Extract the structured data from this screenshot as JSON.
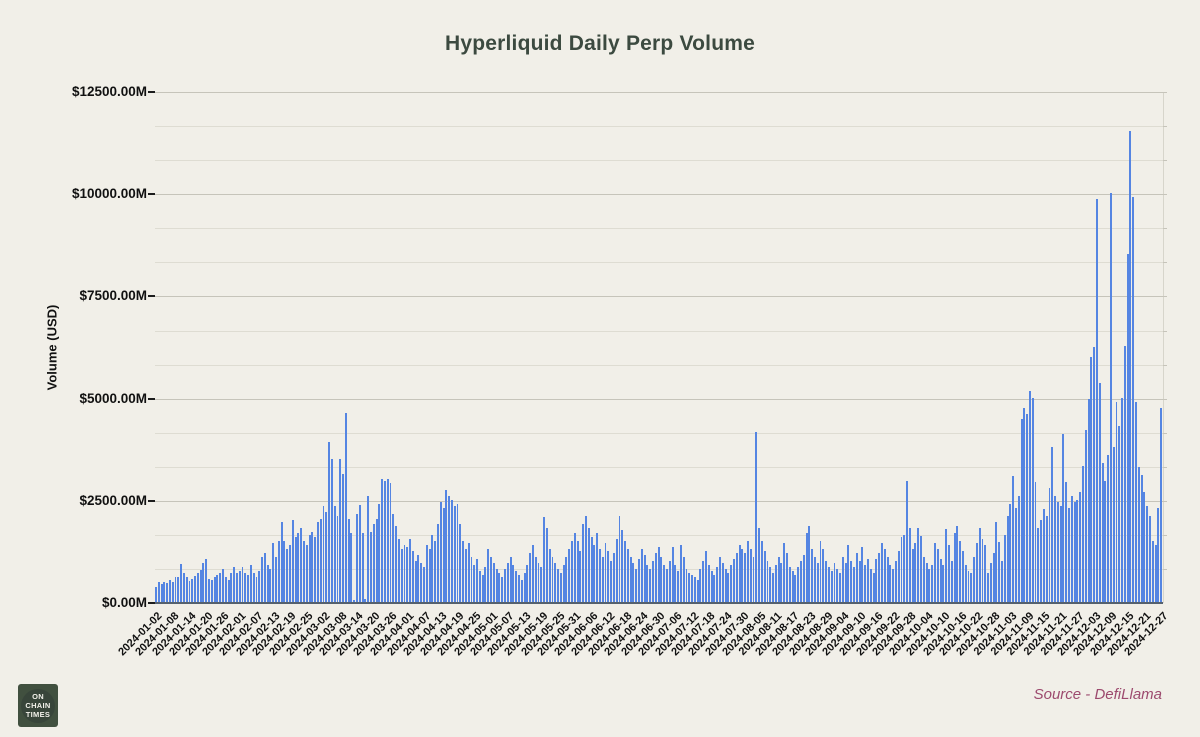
{
  "page": {
    "background": "#f1efe8"
  },
  "header": {
    "title": "Hyperliquid Daily Perp Volume",
    "title_color": "#3c4a40"
  },
  "footer": {
    "source_label": "Source - DefiLlama",
    "source_color": "#9c4a6e",
    "logo_lines": [
      "ON",
      "CHAIN",
      "TIMES"
    ]
  },
  "chart_data": {
    "type": "bar",
    "title": "Hyperliquid Daily Perp Volume",
    "xlabel": "",
    "ylabel": "Volume (USD)",
    "bar_color": "#5585e2",
    "ylim": [
      0,
      12500
    ],
    "grid": "horizontal, 2 minor lines between each labeled major line",
    "legend": "none",
    "y_tick_values": [
      0,
      2500,
      5000,
      7500,
      10000,
      12500
    ],
    "y_tick_labels": [
      "$0.00M",
      "$2500.00M",
      "$5000.00M",
      "$7500.00M",
      "$10000.00M",
      "$12500.00M"
    ],
    "x_tick_every_days": 6,
    "x_tick_labels": [
      "2024-01-02",
      "2024-01-08",
      "2024-01-14",
      "2024-01-20",
      "2024-01-26",
      "2024-02-01",
      "2024-02-07",
      "2024-02-13",
      "2024-02-19",
      "2024-02-25",
      "2024-03-02",
      "2024-03-08",
      "2024-03-14",
      "2024-03-20",
      "2024-03-26",
      "2024-04-01",
      "2024-04-07",
      "2024-04-13",
      "2024-04-19",
      "2024-04-25",
      "2024-05-01",
      "2024-05-07",
      "2024-05-13",
      "2024-05-19",
      "2024-05-25",
      "2024-05-31",
      "2024-06-06",
      "2024-06-12",
      "2024-06-18",
      "2024-06-24",
      "2024-06-30",
      "2024-07-06",
      "2024-07-12",
      "2024-07-18",
      "2024-07-24",
      "2024-07-30",
      "2024-08-05",
      "2024-08-11",
      "2024-08-17",
      "2024-08-23",
      "2024-08-29",
      "2024-09-04",
      "2024-09-10",
      "2024-09-16",
      "2024-09-22",
      "2024-09-28",
      "2024-10-04",
      "2024-10-10",
      "2024-10-16",
      "2024-10-22",
      "2024-10-28",
      "2024-11-03",
      "2024-11-09",
      "2024-11-15",
      "2024-11-21",
      "2024-11-27",
      "2024-12-03",
      "2024-12-09",
      "2024-12-15",
      "2024-12-21",
      "2024-12-27"
    ],
    "series_start_date": "2024-01-02",
    "values_unit": "USD millions, one bar per day",
    "values": [
      370,
      490,
      430,
      490,
      460,
      550,
      500,
      600,
      620,
      930,
      700,
      600,
      520,
      560,
      640,
      700,
      780,
      950,
      1040,
      560,
      550,
      600,
      650,
      700,
      800,
      600,
      550,
      700,
      850,
      700,
      750,
      850,
      700,
      650,
      900,
      700,
      600,
      750,
      1100,
      1200,
      900,
      800,
      1450,
      1100,
      1500,
      1950,
      1500,
      1300,
      1400,
      2000,
      1600,
      1700,
      1800,
      1500,
      1400,
      1650,
      1712,
      1590,
      1950,
      2030,
      2360,
      2200,
      3910,
      3500,
      2360,
      2100,
      3500,
      3130,
      4630,
      2030,
      1700,
      60,
      2150,
      2380,
      1700,
      80,
      2600,
      1710,
      1900,
      2030,
      2400,
      3010,
      2950,
      3000,
      2900,
      2150,
      1850,
      1550,
      1300,
      1400,
      1350,
      1550,
      1250,
      1000,
      1150,
      950,
      850,
      1400,
      1300,
      1650,
      1500,
      1900,
      2450,
      2300,
      2750,
      2600,
      2500,
      2350,
      2400,
      1900,
      1500,
      1300,
      1450,
      1100,
      900,
      1050,
      750,
      650,
      850,
      1300,
      1100,
      950,
      800,
      700,
      600,
      800,
      950,
      1100,
      900,
      750,
      650,
      550,
      700,
      900,
      1200,
      1400,
      1100,
      950,
      850,
      2080,
      1800,
      1300,
      1100,
      950,
      800,
      700,
      900,
      1100,
      1300,
      1500,
      1700,
      1500,
      1250,
      1900,
      2100,
      1800,
      1600,
      1400,
      1700,
      1300,
      1100,
      1450,
      1250,
      1000,
      1200,
      1550,
      2100,
      1750,
      1500,
      1300,
      1100,
      950,
      800,
      1050,
      1300,
      1150,
      900,
      800,
      1000,
      1200,
      1350,
      1100,
      900,
      800,
      1000,
      1350,
      900,
      750,
      1400,
      1100,
      800,
      700,
      650,
      600,
      550,
      800,
      1000,
      1250,
      900,
      750,
      650,
      850,
      1100,
      950,
      800,
      700,
      900,
      1050,
      1200,
      1400,
      1300,
      1200,
      1500,
      1300,
      1100,
      4160,
      1800,
      1500,
      1250,
      1000,
      850,
      700,
      900,
      1100,
      950,
      1450,
      1200,
      850,
      750,
      650,
      850,
      1000,
      1150,
      1700,
      1850,
      1300,
      1100,
      950,
      1500,
      1300,
      1000,
      850,
      750,
      950,
      800,
      700,
      1100,
      950,
      1400,
      1000,
      850,
      1200,
      1000,
      1350,
      900,
      1050,
      800,
      700,
      1050,
      1200,
      1450,
      1300,
      1100,
      900,
      800,
      1000,
      1250,
      1600,
      1650,
      2950,
      1800,
      1300,
      1450,
      1800,
      1614,
      1100,
      950,
      800,
      900,
      1450,
      1300,
      1050,
      900,
      1785,
      1400,
      1000,
      1700,
      1850,
      1500,
      1250,
      900,
      750,
      700,
      1100,
      1450,
      1800,
      1550,
      1400,
      700,
      950,
      1200,
      1950,
      1470,
      1000,
      1650,
      2100,
      2400,
      3080,
      2300,
      2600,
      4475,
      4740,
      4600,
      5170,
      4980,
      2940,
      1800,
      2000,
      2280,
      2100,
      2780,
      3780,
      2600,
      2440,
      2350,
      4110,
      2940,
      2290,
      2600,
      2450,
      2500,
      2700,
      3330,
      4200,
      4965,
      6000,
      6250,
      9850,
      5350,
      3400,
      2950,
      3600,
      10000,
      3800,
      4890,
      4300,
      5000,
      6260,
      8510,
      11530,
      9900,
      4900,
      3300,
      3100,
      2700,
      2350,
      2100,
      1500,
      1400,
      2300,
      4750
    ]
  }
}
